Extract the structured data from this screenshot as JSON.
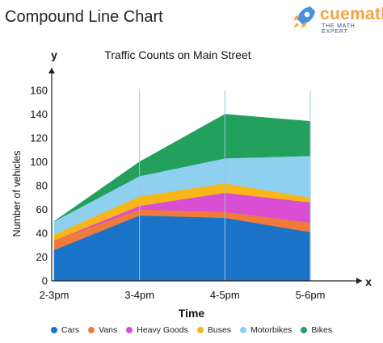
{
  "page": {
    "heading": "Compound Line Chart",
    "brand": {
      "name": "cuemath",
      "tagline": "THE MATH EXPERT",
      "logo_icon": "rocket-icon"
    }
  },
  "chart_data": {
    "type": "area",
    "stacked": true,
    "title": "Traffic Counts on Main Street",
    "xlabel": "Time",
    "ylabel": "Number of vehicles",
    "x_axis_letter": "x",
    "y_axis_letter": "y",
    "categories": [
      "2-3pm",
      "3-4pm",
      "4-5pm",
      "5-6pm"
    ],
    "ylim": [
      0,
      160
    ],
    "yticks": [
      0,
      20,
      40,
      60,
      80,
      100,
      120,
      140,
      160
    ],
    "grid": "vertical lines at each category",
    "legend_position": "bottom",
    "series": [
      {
        "name": "Cars",
        "color": "#1a73c7",
        "values": [
          26,
          55,
          53,
          41
        ]
      },
      {
        "name": "Vans",
        "color": "#f07a3c",
        "values": [
          8,
          5,
          5,
          8
        ]
      },
      {
        "name": "Heavy Goods",
        "color": "#d94ed3",
        "values": [
          0,
          3,
          16,
          17
        ]
      },
      {
        "name": "Buses",
        "color": "#f7b719",
        "values": [
          5,
          8,
          8,
          4
        ]
      },
      {
        "name": "Motorbikes",
        "color": "#8fd0ef",
        "values": [
          11,
          17,
          21,
          35
        ]
      },
      {
        "name": "Bikes",
        "color": "#22a05c",
        "values": [
          0,
          12,
          37,
          29
        ]
      }
    ]
  }
}
